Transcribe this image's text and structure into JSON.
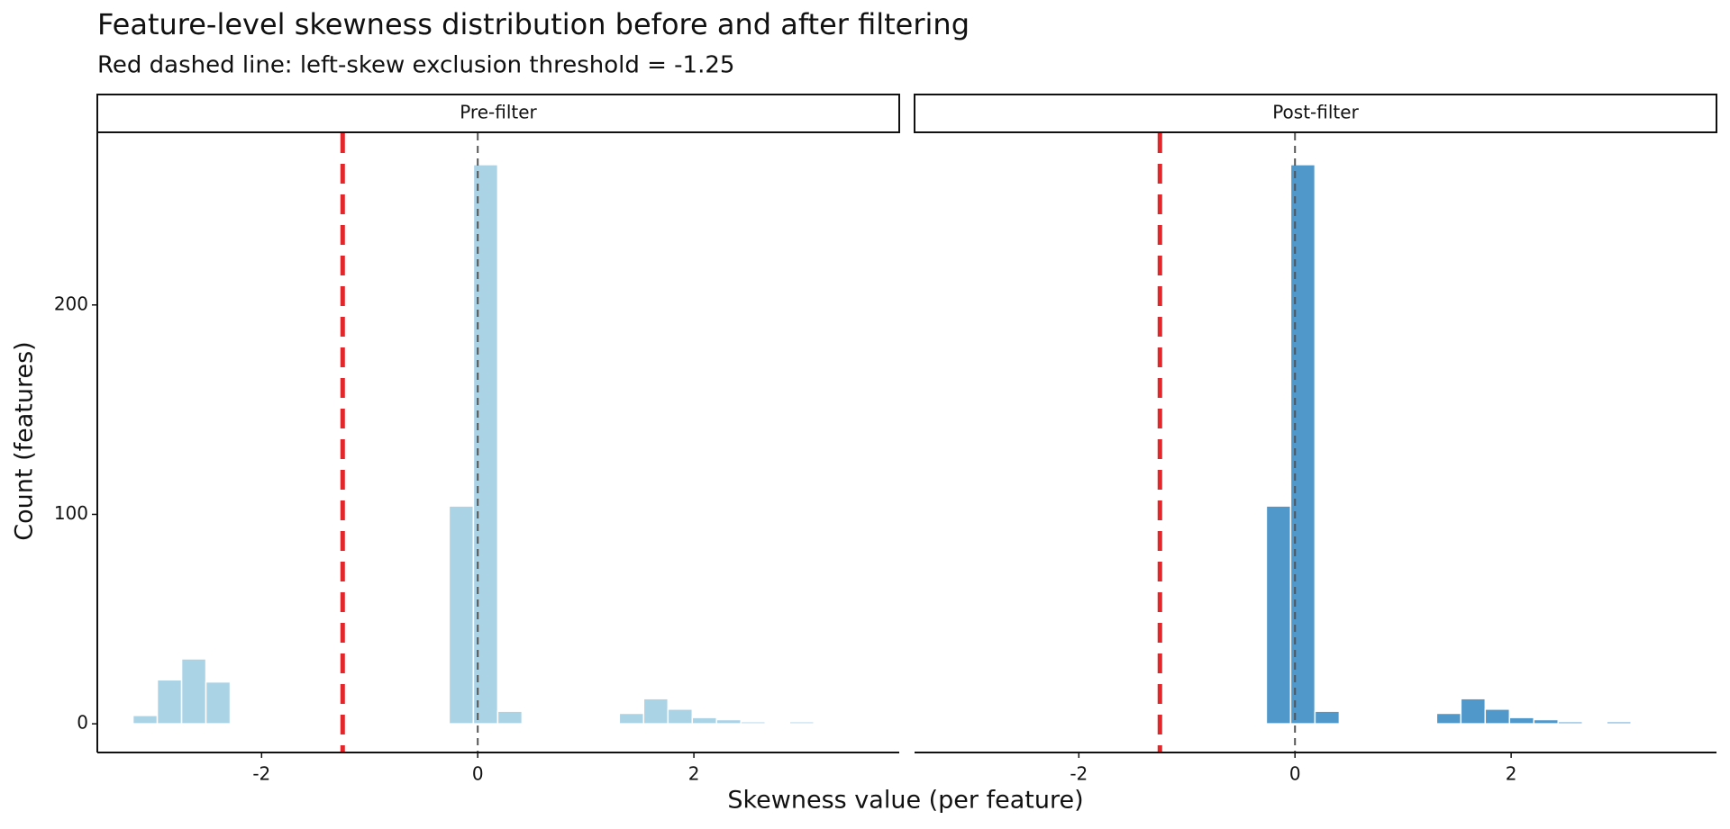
{
  "chart_data": {
    "type": "histogram",
    "title": "Feature-level skewness distribution before and after filtering",
    "subtitle": "Red dashed line: left-skew exclusion threshold = -1.25",
    "xlabel": "Skewness value (per feature)",
    "ylabel": "Count (features)",
    "xlim": [
      -3.52,
      3.9
    ],
    "xticks": [
      -2,
      0,
      2
    ],
    "ylim": [
      -13.7,
      282
    ],
    "yticks": [
      0,
      100,
      200
    ],
    "bins": [
      -3.19,
      -2.965,
      -2.74,
      -2.515,
      -2.29,
      -2.065,
      -1.84,
      -1.615,
      -1.39,
      -1.165,
      -0.94,
      -0.715,
      -0.49,
      -0.265,
      -0.04,
      0.185,
      0.41,
      0.635,
      0.86,
      1.085,
      1.31,
      1.535,
      1.76,
      1.985,
      2.21,
      2.435,
      2.66,
      2.885,
      3.11
    ],
    "series": [
      {
        "name": "Pre-filter",
        "color": "#abd3e6",
        "values": [
          4,
          21,
          31,
          20,
          0,
          0,
          0,
          0,
          0,
          0,
          0,
          0,
          0,
          104,
          267,
          6,
          0,
          0,
          0,
          0,
          5,
          12,
          7,
          3,
          2,
          1,
          0,
          1
        ]
      },
      {
        "name": "Post-filter",
        "color": "#5097ca",
        "values": [
          0,
          0,
          0,
          0,
          0,
          0,
          0,
          0,
          0,
          0,
          0,
          0,
          0,
          104,
          267,
          6,
          0,
          0,
          0,
          0,
          5,
          12,
          7,
          3,
          2,
          1,
          0,
          1
        ]
      }
    ],
    "reference_lines": [
      {
        "value": -1.25,
        "color": "#e3262a"
      },
      {
        "value": 0,
        "color": "#555555"
      }
    ]
  }
}
